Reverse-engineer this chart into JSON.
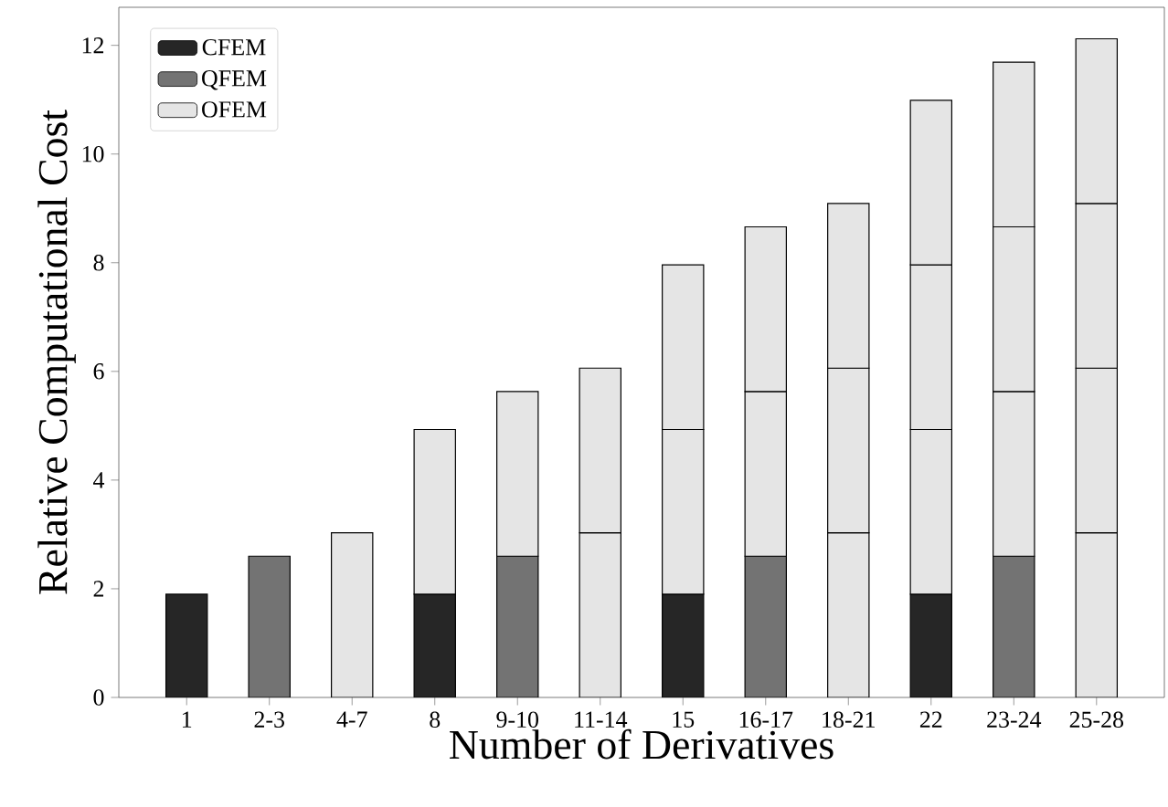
{
  "chart_data": {
    "type": "bar",
    "stacked": true,
    "xlabel": "Number of Derivatives",
    "ylabel": "Relative Computational Cost",
    "categories": [
      "1",
      "2-3",
      "4-7",
      "8",
      "9-10",
      "11-14",
      "15",
      "16-17",
      "18-21",
      "22",
      "23-24",
      "25-28"
    ],
    "series": [
      {
        "name": "CFEM",
        "color": "#262626",
        "values": [
          1.9,
          null,
          null,
          1.9,
          null,
          null,
          1.9,
          null,
          null,
          1.9,
          null,
          null
        ]
      },
      {
        "name": "QFEM",
        "color": "#737373",
        "values": [
          null,
          2.6,
          null,
          null,
          2.6,
          null,
          null,
          2.6,
          null,
          null,
          2.6,
          null
        ]
      },
      {
        "name": "OFEM",
        "color": "#e5e5e5",
        "values": [
          null,
          null,
          3.03,
          3.03,
          3.03,
          3.03,
          3.03,
          3.03,
          3.03,
          3.03,
          3.03,
          3.03
        ]
      },
      {
        "color": "#e5e5e5",
        "values": [
          null,
          null,
          null,
          null,
          null,
          3.03,
          3.03,
          3.03,
          3.03,
          3.03,
          3.03,
          3.03
        ]
      },
      {
        "color": "#e5e5e5",
        "values": [
          null,
          null,
          null,
          null,
          null,
          null,
          null,
          null,
          3.03,
          3.03,
          3.03,
          3.03
        ]
      },
      {
        "color": "#e5e5e5",
        "values": [
          null,
          null,
          null,
          null,
          null,
          null,
          null,
          null,
          null,
          null,
          null,
          3.03
        ]
      }
    ],
    "ylim": [
      0,
      12.7
    ],
    "yticks": [
      0,
      2,
      4,
      6,
      8,
      10,
      12
    ],
    "legend": "top left"
  }
}
